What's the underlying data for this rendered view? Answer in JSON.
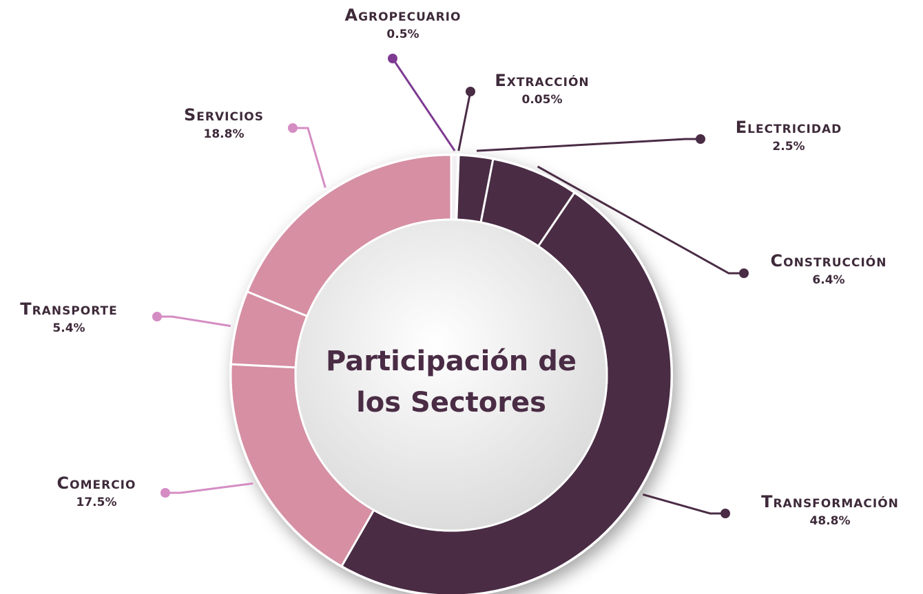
{
  "chart_data": {
    "type": "donut",
    "title": "Participación de los Sectores",
    "categories": [
      "Agropecuario",
      "Extracción",
      "Electricidad",
      "Construcción",
      "Transformación",
      "Comercio",
      "Transporte",
      "Servicios"
    ],
    "values": [
      0.5,
      0.05,
      2.5,
      6.4,
      48.8,
      17.5,
      5.4,
      18.8
    ],
    "value_labels": [
      "0.5%",
      "0.05%",
      "2.5%",
      "6.4%",
      "48.8%",
      "17.5%",
      "5.4%",
      "18.8%"
    ],
    "colors": [
      "#f2eef2",
      "#4a2c45",
      "#4a2c45",
      "#4a2c45",
      "#4a2c45",
      "#d68fa3",
      "#d68fa3",
      "#d68fa3"
    ],
    "leader_colors": [
      "#7e3a92",
      "#4a2c45",
      "#4a2c45",
      "#4a2c45",
      "#4a2c45",
      "#d58cc3",
      "#d58cc3",
      "#d58cc3"
    ]
  }
}
